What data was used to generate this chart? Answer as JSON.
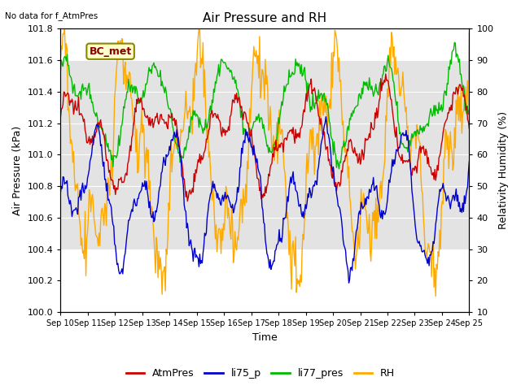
{
  "title": "Air Pressure and RH",
  "top_left_note": "No data for f_AtmPres",
  "xlabel": "Time",
  "ylabel_left": "Air Pressure (kPa)",
  "ylabel_right": "Relativity Humidity (%)",
  "ylim_left": [
    100.0,
    101.8
  ],
  "ylim_right": [
    10,
    100
  ],
  "yticks_left": [
    100.0,
    100.2,
    100.4,
    100.6,
    100.8,
    101.0,
    101.2,
    101.4,
    101.6,
    101.8
  ],
  "yticks_right": [
    10,
    20,
    30,
    40,
    50,
    60,
    70,
    80,
    90,
    100
  ],
  "xtick_labels": [
    "Sep 10",
    "Sep 11",
    "Sep 12",
    "Sep 13",
    "Sep 14",
    "Sep 15",
    "Sep 16",
    "Sep 17",
    "Sep 18",
    "Sep 19",
    "Sep 20",
    "Sep 21",
    "Sep 22",
    "Sep 23",
    "Sep 24",
    "Sep 25"
  ],
  "shaded_ylim": [
    100.4,
    101.6
  ],
  "annotation_box": "BC_met",
  "color_AtmPres": "#cc0000",
  "color_li75_p": "#0000cc",
  "color_li77_pres": "#00bb00",
  "color_RH": "#ffaa00",
  "legend_labels": [
    "AtmPres",
    "li75_p",
    "li77_pres",
    "RH"
  ],
  "background_color": "#ffffff",
  "title_fontsize": 11,
  "label_fontsize": 9,
  "tick_fontsize": 8,
  "xtick_fontsize": 7
}
